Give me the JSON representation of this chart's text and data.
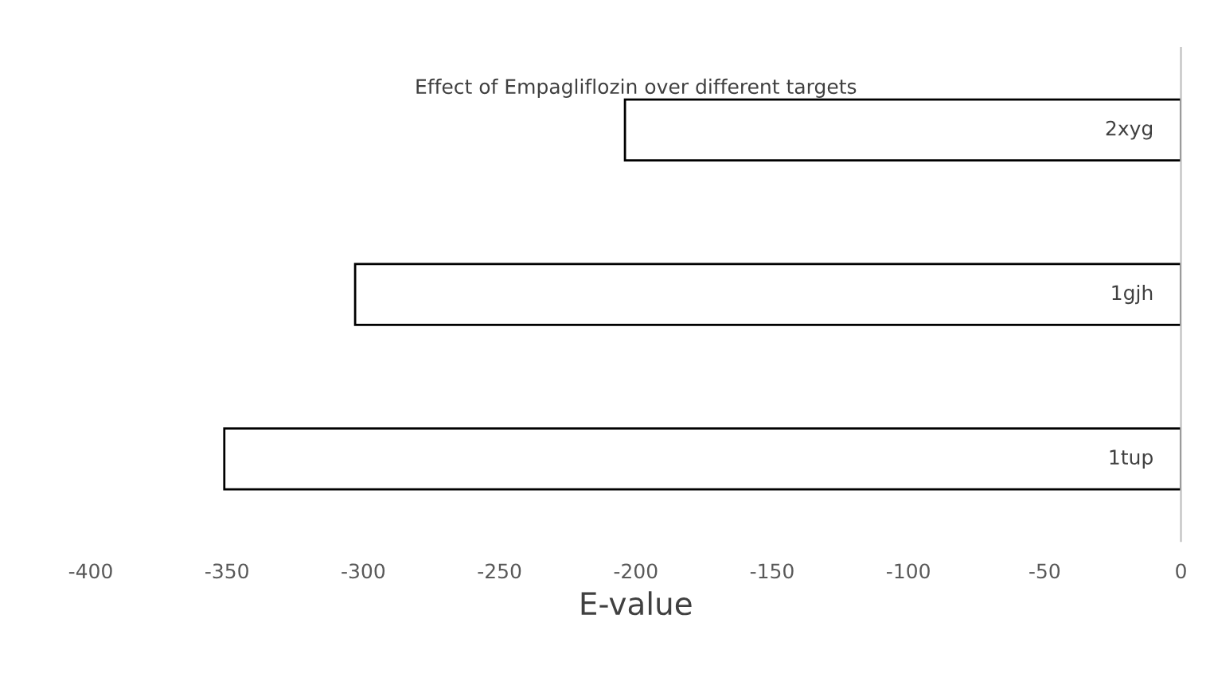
{
  "chart_data": {
    "type": "bar",
    "orientation": "horizontal",
    "title": "Effect of Empagliflozin over different targets",
    "xlabel": "E-value",
    "categories": [
      "2xyg",
      "1gjh",
      "1tup"
    ],
    "values": [
      -204,
      -303,
      -351
    ],
    "color": "#ffffff",
    "xlim": [
      -400,
      0
    ],
    "xticks": [
      -400,
      -350,
      -300,
      -250,
      -200,
      -150,
      -100,
      -50,
      0
    ],
    "grid": false,
    "legend": false
  }
}
